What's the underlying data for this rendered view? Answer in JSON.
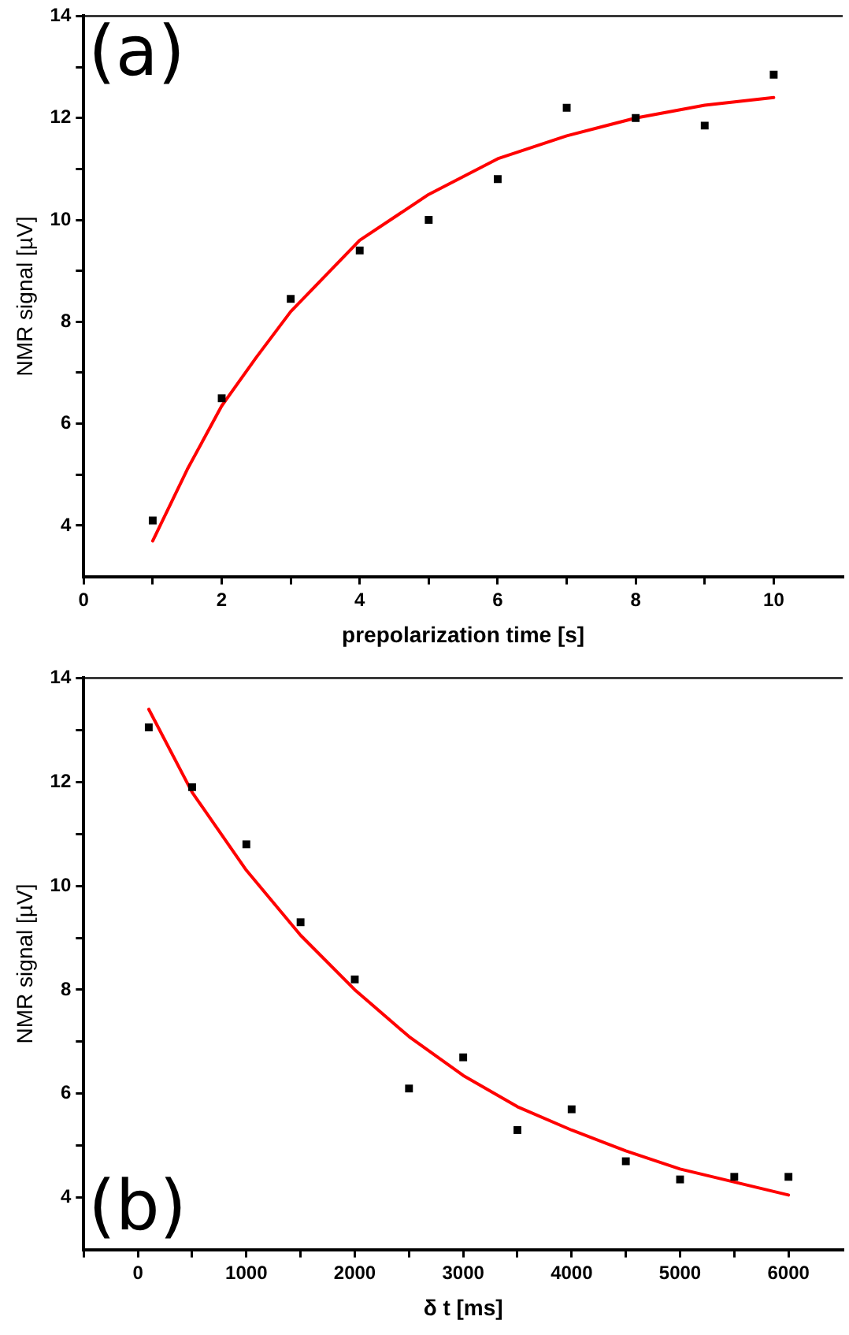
{
  "chart_data": [
    {
      "type": "scatter",
      "xlabel": "prepolarization time [s]",
      "ylabel": "NMR signal [µV]",
      "annotations": [
        "(a)"
      ],
      "xlim": [
        0,
        11
      ],
      "xticks": [
        0,
        {
          "value": 1,
          "label": null
        },
        2,
        {
          "value": 3,
          "label": null
        },
        4,
        {
          "value": 5,
          "label": null
        },
        6,
        {
          "value": 7,
          "label": null
        },
        8,
        {
          "value": 9,
          "label": null
        },
        10
      ],
      "ylim": [
        3,
        14
      ],
      "yticks": [
        4,
        {
          "value": 5,
          "label": null
        },
        6,
        {
          "value": 7,
          "label": null
        },
        8,
        {
          "value": 9,
          "label": null
        },
        10,
        {
          "value": 11,
          "label": null
        },
        12,
        {
          "value": 13,
          "label": null
        },
        14
      ],
      "grid": false,
      "legend": false,
      "series": [
        {
          "type": "scatter",
          "color": "#000000",
          "marker": "square",
          "x": [
            1,
            2,
            3,
            4,
            5,
            6,
            7,
            8,
            9,
            10
          ],
          "values": [
            4.1,
            6.5,
            8.45,
            9.4,
            10,
            10.8,
            12.2,
            12,
            11.85,
            12.85
          ]
        },
        {
          "type": "line",
          "color": "#ff0000",
          "marker": "none",
          "line_style": "solid",
          "x": [
            1,
            1.5,
            2,
            2.5,
            3,
            4,
            5,
            6,
            7,
            8,
            9,
            10
          ],
          "values": [
            3.7,
            5.1,
            6.35,
            7.3,
            8.2,
            9.6,
            10.5,
            11.2,
            11.65,
            12.0,
            12.25,
            12.4
          ]
        }
      ]
    },
    {
      "type": "scatter",
      "xlabel": "δ t [ms]",
      "ylabel": "NMR signal [µV]",
      "annotations": [
        "(b)"
      ],
      "xlim": [
        -500,
        6500
      ],
      "xticks": [
        {
          "value": -500,
          "label": null
        },
        0,
        {
          "value": 500,
          "label": null
        },
        1000,
        {
          "value": 1500,
          "label": null
        },
        2000,
        {
          "value": 2500,
          "label": null
        },
        3000,
        {
          "value": 3500,
          "label": null
        },
        4000,
        {
          "value": 4500,
          "label": null
        },
        5000,
        {
          "value": 5500,
          "label": null
        },
        6000
      ],
      "ylim": [
        3,
        14
      ],
      "yticks": [
        4,
        {
          "value": 5,
          "label": null
        },
        6,
        {
          "value": 7,
          "label": null
        },
        8,
        {
          "value": 9,
          "label": null
        },
        10,
        {
          "value": 11,
          "label": null
        },
        12,
        {
          "value": 13,
          "label": null
        },
        14
      ],
      "grid": false,
      "legend": false,
      "series": [
        {
          "type": "scatter",
          "color": "#000000",
          "marker": "square",
          "x": [
            100,
            500,
            1000,
            1500,
            2000,
            2500,
            3000,
            3500,
            4000,
            4500,
            5000,
            5500,
            6000
          ],
          "values": [
            13.05,
            11.9,
            10.8,
            9.3,
            8.2,
            6.1,
            6.7,
            5.3,
            5.7,
            4.7,
            4.35,
            4.4,
            4.4
          ]
        },
        {
          "type": "line",
          "color": "#ff0000",
          "marker": "none",
          "line_style": "solid",
          "x": [
            100,
            500,
            1000,
            1500,
            2000,
            2500,
            3000,
            3500,
            4000,
            4500,
            5000,
            5500,
            6000
          ],
          "values": [
            13.4,
            11.8,
            10.3,
            9.05,
            8.0,
            7.1,
            6.35,
            5.75,
            5.3,
            4.9,
            4.55,
            4.3,
            4.05
          ]
        }
      ]
    }
  ]
}
